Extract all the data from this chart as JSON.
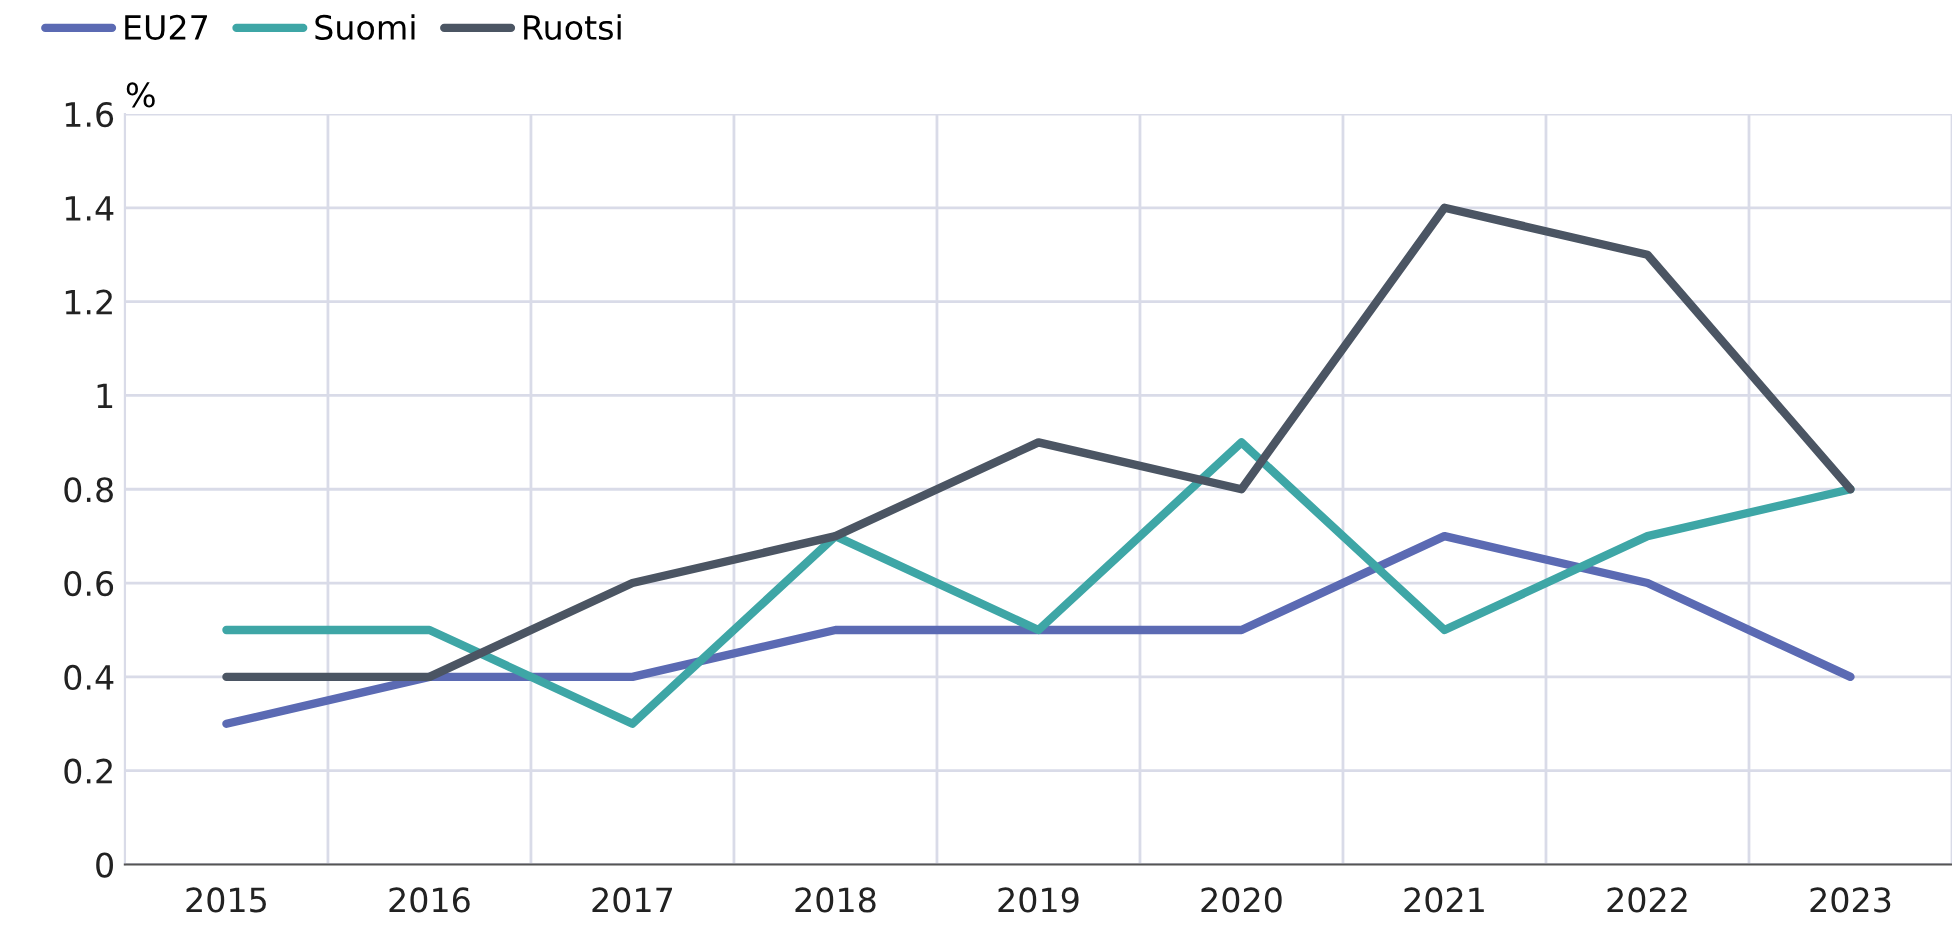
{
  "chart_data": {
    "type": "line",
    "ylabel": "%",
    "categories": [
      "2015",
      "2016",
      "2017",
      "2018",
      "2019",
      "2020",
      "2021",
      "2022",
      "2023"
    ],
    "series": [
      {
        "name": "EU27",
        "color": "#5b6ab3",
        "values": [
          0.3,
          0.4,
          0.4,
          0.5,
          0.5,
          0.5,
          0.7,
          0.6,
          0.4
        ]
      },
      {
        "name": "Suomi",
        "color": "#3ea6a6",
        "values": [
          0.5,
          0.5,
          0.3,
          0.7,
          0.5,
          0.9,
          0.5,
          0.7,
          0.8
        ]
      },
      {
        "name": "Ruotsi",
        "color": "#4b5563",
        "values": [
          0.4,
          0.4,
          0.6,
          0.7,
          0.9,
          0.8,
          1.4,
          1.3,
          0.8
        ]
      }
    ],
    "ylim": [
      0,
      1.6
    ],
    "yticks": [
      0,
      0.2,
      0.4,
      0.6,
      0.8,
      1,
      1.2,
      1.4,
      1.6
    ],
    "grid": true,
    "legend": "top left",
    "marker": "none",
    "line_style": "solid"
  }
}
